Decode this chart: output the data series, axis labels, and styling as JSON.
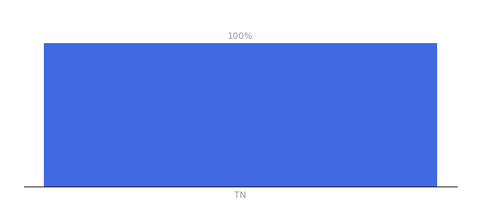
{
  "categories": [
    "TN"
  ],
  "values": [
    100
  ],
  "bar_color": "#4169e1",
  "bar_label": "100%",
  "label_color": "#999999",
  "label_fontsize": 9,
  "tick_color": "#999999",
  "tick_fontsize": 9,
  "ylim": [
    0,
    118
  ],
  "background_color": "#ffffff",
  "bar_width": 0.42,
  "spine_color": "#111111",
  "spine_linewidth": 0.8
}
